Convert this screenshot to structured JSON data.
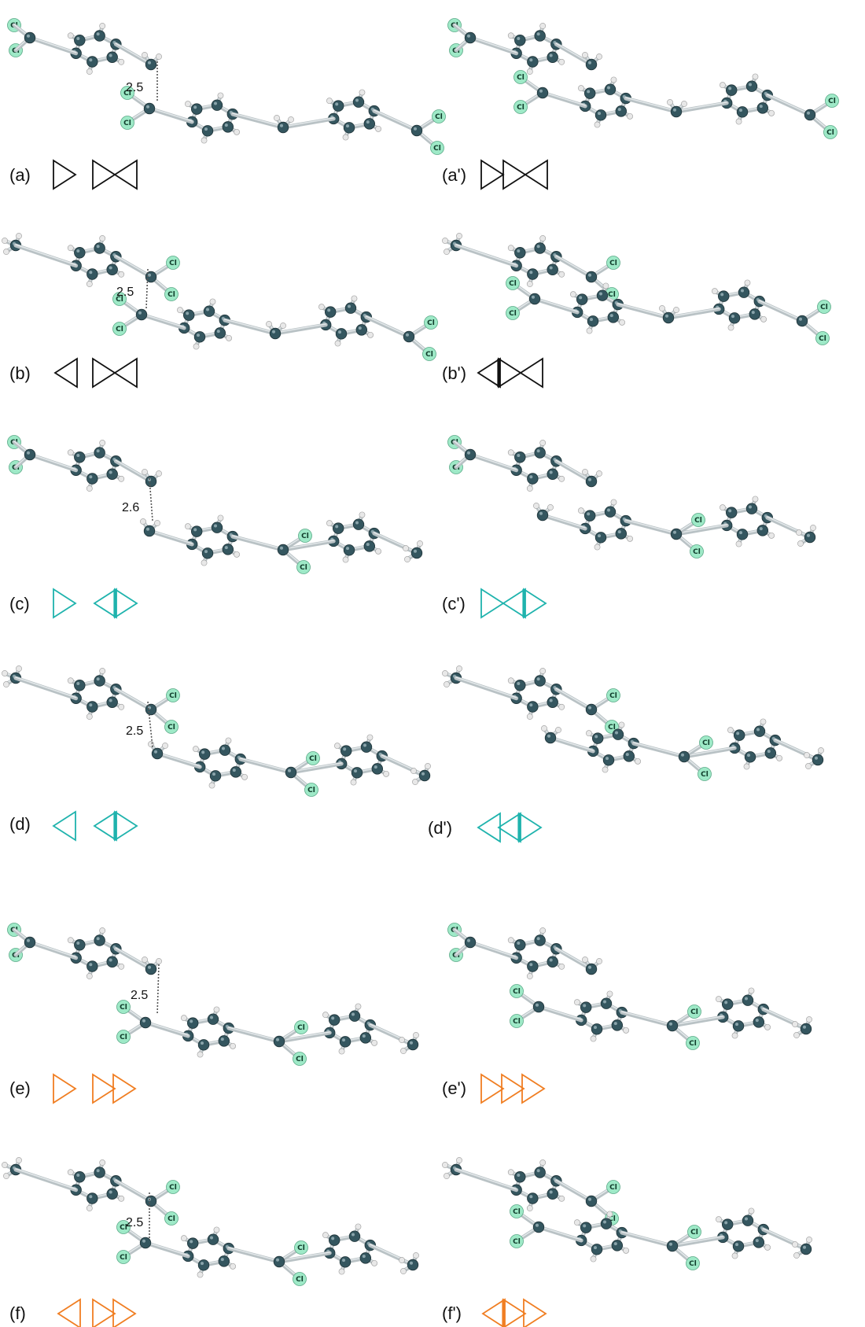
{
  "figure": {
    "colors": {
      "black": "#111111",
      "teal": "#1fb3ad",
      "orange": "#f07e22",
      "carbon": "#34565f",
      "chlorine": "#9ee9c7",
      "hydrogen": "#e8e8e8",
      "bond": "#b9c2c5"
    },
    "atom_labels": {
      "chlorine": "Cl",
      "hydrogen": "H"
    },
    "panels": [
      {
        "label": "(a)",
        "distance": "2.5",
        "color": "black",
        "symbols": "single-right + double-facing"
      },
      {
        "label": "(a')",
        "distance": "",
        "color": "black",
        "symbols": "combined"
      },
      {
        "label": "(b)",
        "distance": "2.5",
        "color": "black",
        "symbols": "single-left + double-facing"
      },
      {
        "label": "(b')",
        "distance": "",
        "color": "black",
        "symbols": "combined"
      },
      {
        "label": "(c)",
        "distance": "2.6",
        "color": "teal",
        "symbols": "single-right + double-opposed"
      },
      {
        "label": "(c')",
        "distance": "",
        "color": "teal",
        "symbols": "combined"
      },
      {
        "label": "(d)",
        "distance": "2.5",
        "color": "teal",
        "symbols": "single-left + double-opposed"
      },
      {
        "label": "(d')",
        "distance": "",
        "color": "teal",
        "symbols": "combined"
      },
      {
        "label": "(e)",
        "distance": "2.5",
        "color": "orange",
        "symbols": "single-right + double-right"
      },
      {
        "label": "(e')",
        "distance": "",
        "color": "orange",
        "symbols": "combined"
      },
      {
        "label": "(f)",
        "distance": "2.5",
        "color": "orange",
        "symbols": "single-left + double-right"
      },
      {
        "label": "(f')",
        "distance": "",
        "color": "orange",
        "symbols": "combined"
      }
    ]
  }
}
